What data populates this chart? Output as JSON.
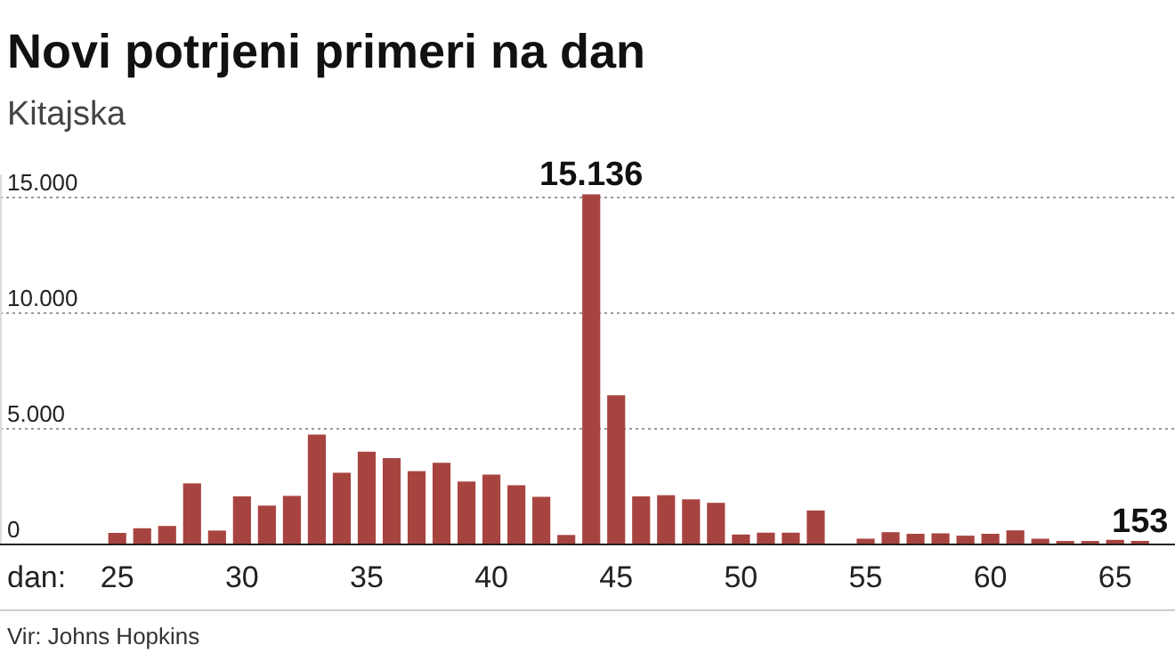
{
  "chart_data": {
    "type": "bar",
    "title": "Novi potrjeni primeri na dan",
    "subtitle": "Kitajska",
    "xlabel": "dan:",
    "x": [
      25,
      26,
      27,
      28,
      29,
      30,
      31,
      32,
      33,
      34,
      35,
      36,
      37,
      38,
      39,
      40,
      41,
      42,
      43,
      44,
      45,
      46,
      47,
      48,
      49,
      50,
      51,
      52,
      53,
      55,
      56,
      57,
      58,
      59,
      60,
      61,
      62,
      63,
      64,
      65,
      66
    ],
    "values": [
      500,
      700,
      800,
      2640,
      600,
      2080,
      1680,
      2100,
      4750,
      3100,
      4010,
      3730,
      3170,
      3530,
      2720,
      3020,
      2560,
      2060,
      410,
      15136,
      6450,
      2080,
      2130,
      1950,
      1800,
      430,
      510,
      510,
      1470,
      250,
      530,
      460,
      480,
      380,
      460,
      610,
      250,
      150,
      150,
      200,
      153
    ],
    "value_labels": [
      null,
      null,
      null,
      null,
      null,
      null,
      null,
      null,
      null,
      null,
      null,
      null,
      null,
      null,
      null,
      null,
      null,
      null,
      null,
      "15.136",
      null,
      null,
      null,
      null,
      null,
      null,
      null,
      null,
      null,
      null,
      null,
      null,
      null,
      null,
      null,
      null,
      null,
      null,
      null,
      null,
      "153"
    ],
    "color": "#a84440",
    "xlim": [
      20.3,
      67.4
    ],
    "xticks": [
      25,
      30,
      35,
      40,
      45,
      50,
      55,
      60,
      65
    ],
    "ylim": [
      0,
      16000
    ],
    "yticks": [
      {
        "value": 0,
        "label": "0"
      },
      {
        "value": 5000,
        "label": "5.000"
      },
      {
        "value": 10000,
        "label": "10.000"
      },
      {
        "value": 15000,
        "label": "15.000"
      }
    ],
    "grid": "y",
    "annotations": [
      "Vir: Johns Hopkins"
    ]
  }
}
